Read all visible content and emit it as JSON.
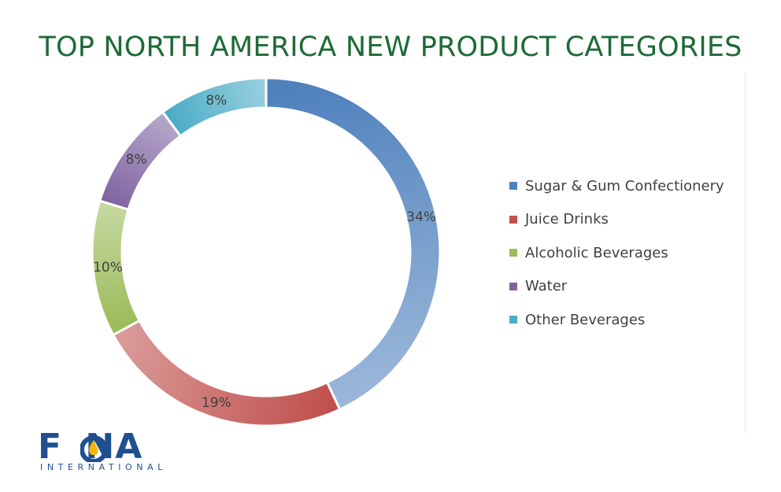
{
  "page": {
    "title": "TOP NORTH AMERICA NEW PRODUCT CATEGORIES"
  },
  "chart_data": {
    "type": "pie",
    "variant": "donut",
    "title": "TOP NORTH AMERICA NEW PRODUCT CATEGORIES",
    "categories": [
      "Sugar & Gum Confectionery",
      "Juice Drinks",
      "Alcoholic Beverages",
      "Water",
      "Other Beverages"
    ],
    "values": [
      34,
      19,
      10,
      8,
      8
    ],
    "labels": [
      "34%",
      "19%",
      "10%",
      "8%",
      "8%"
    ],
    "colors": [
      "#4f81bd",
      "#c0504d",
      "#9bbb59",
      "#8064a2",
      "#4bacc6"
    ],
    "legend_position": "right"
  },
  "logo": {
    "wordmark": "FONA",
    "subtitle": "INTERNATIONAL",
    "colors": {
      "primary": "#1f4f8f",
      "flame": "#f2b705"
    }
  }
}
